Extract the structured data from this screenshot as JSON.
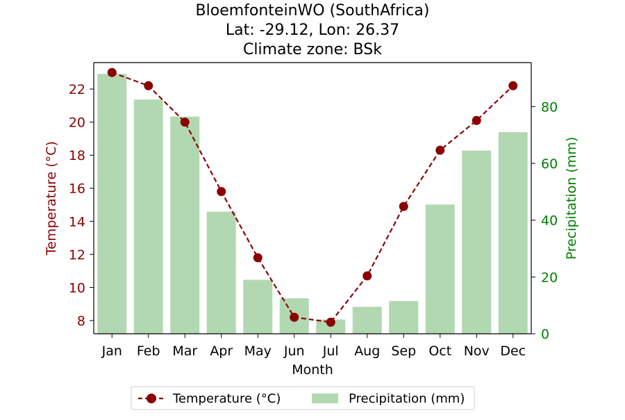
{
  "title_lines": [
    "BloemfonteinWO (SouthAfrica)",
    "Lat: -29.12, Lon: 26.37",
    "Climate zone: BSk"
  ],
  "colors": {
    "temperature": "#8b0000",
    "precipitation_bar": "#b2d8b2",
    "precip_axis": "#008000",
    "axis": "#000000"
  },
  "chart_data": {
    "type": "bar+line",
    "categories": [
      "Jan",
      "Feb",
      "Mar",
      "Apr",
      "May",
      "Jun",
      "Jul",
      "Aug",
      "Sep",
      "Oct",
      "Nov",
      "Dec"
    ],
    "xlabel": "Month",
    "temperature": {
      "name": "Temperature (°C)",
      "axis_label": "Temperature (°C)",
      "values": [
        23.0,
        22.2,
        20.0,
        15.8,
        11.8,
        8.2,
        7.9,
        10.7,
        14.9,
        18.3,
        20.1,
        22.2
      ],
      "ylim": [
        7.2,
        23.6
      ],
      "ticks": [
        8,
        10,
        12,
        14,
        16,
        18,
        20,
        22
      ],
      "style": "dashed line with circle markers"
    },
    "precipitation": {
      "name": "Precipitation (mm)",
      "axis_label": "Precipitation (mm)",
      "values": [
        91.5,
        82.5,
        76.5,
        43.0,
        19.0,
        12.5,
        5.0,
        9.5,
        11.5,
        45.5,
        64.5,
        71.0
      ],
      "ylim": [
        0,
        95.5
      ],
      "ticks": [
        0,
        20,
        40,
        60,
        80
      ]
    },
    "legend": {
      "placement": "bottom-center",
      "entries": [
        "Temperature (°C)",
        "Precipitation (mm)"
      ]
    }
  }
}
